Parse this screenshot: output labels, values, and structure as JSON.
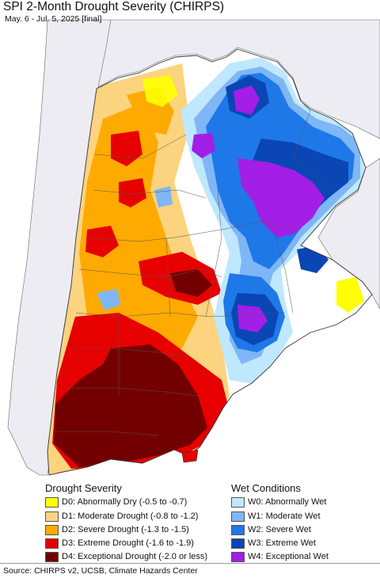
{
  "header": {
    "title": "SPI 2-Month Drought Severity (CHIRPS)",
    "subtitle": "May. 6 - Jul. 5, 2025 [final]"
  },
  "legend": {
    "drought_heading": "Drought Severity",
    "wet_heading": "Wet Conditions",
    "drought": [
      {
        "label": "D0: Abnormally Dry (-0.5 to -0.7)",
        "color": "#ffff00"
      },
      {
        "label": "D1: Moderate Drought (-0.8 to -1.2)",
        "color": "#fcd37f"
      },
      {
        "label": "D2: Severe Drought (-1.3 to -1.5)",
        "color": "#ffaa00"
      },
      {
        "label": "D3: Extreme Drought (-1.6 to -1.9)",
        "color": "#e60000"
      },
      {
        "label": "D4: Exceptional Drought (-2.0 or less)",
        "color": "#730000"
      }
    ],
    "wet": [
      {
        "label": "W0: Abnormally Wet",
        "color": "#bfe8ff"
      },
      {
        "label": "W1: Moderate Wet",
        "color": "#7fb6f5"
      },
      {
        "label": "W2: Severe Wet",
        "color": "#1f78e8"
      },
      {
        "label": "W3: Extreme Wet",
        "color": "#0a46b4"
      },
      {
        "label": "W4: Exceptional Wet",
        "color": "#a31ee6"
      }
    ]
  },
  "footer": {
    "source": "Source: CHIRPS v2, UCSB, Climate Hazards Center"
  }
}
